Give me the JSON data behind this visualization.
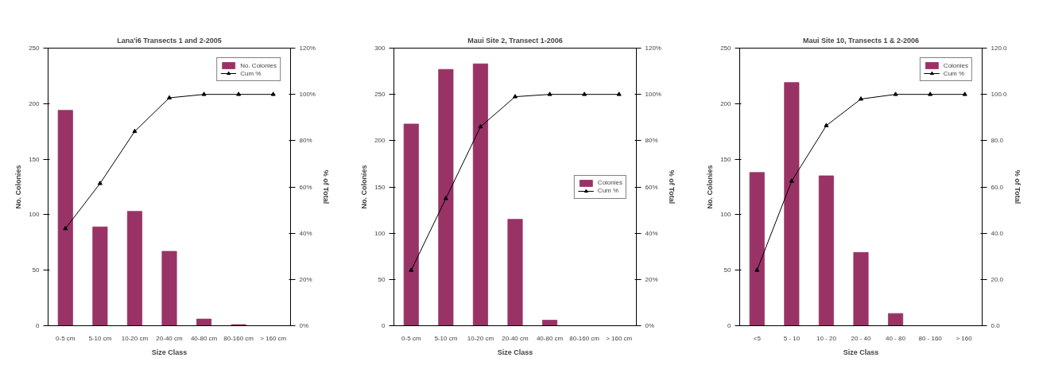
{
  "chart_data": [
    {
      "type": "bar",
      "title": "Lana'i6 Transects 1 and 2-2005",
      "xlabel": "Size Class",
      "ylabel": "No. Colonies",
      "y2label": "% of Total",
      "categories": [
        "0-5 cm",
        "5-10 cm",
        "10-20 cm",
        "20-40 cm",
        "40-80 cm",
        "80-160 cm",
        "> 160 cm"
      ],
      "ylim": [
        0,
        250
      ],
      "yticks": [
        0,
        50,
        100,
        150,
        200,
        250
      ],
      "y2lim": [
        0,
        120
      ],
      "y2ticks": [
        {
          "value": 0,
          "label": "0%"
        },
        {
          "value": 20,
          "label": "20%"
        },
        {
          "value": 40,
          "label": "40%"
        },
        {
          "value": 60,
          "label": "60%"
        },
        {
          "value": 80,
          "label": "80%"
        },
        {
          "value": 100,
          "label": "100%"
        },
        {
          "value": 120,
          "label": "120%"
        }
      ],
      "grid": false,
      "legend": "top right",
      "series": [
        {
          "name": "No. Colonies",
          "color": "#993366",
          "values": [
            194,
            89,
            103,
            67,
            6,
            1,
            0
          ]
        },
        {
          "name": "Cum %",
          "type": "line",
          "axis": "y2",
          "color": "#000000",
          "marker": "triangle",
          "values": [
            42,
            61.5,
            84,
            98.5,
            100,
            100,
            100
          ]
        }
      ]
    },
    {
      "type": "bar",
      "title": "Maui Site 2, Transect 1-2006",
      "xlabel": "Size Class",
      "ylabel": "No. Colonies",
      "y2label": "% of Total",
      "categories": [
        "0-5 cm",
        "5-10 cm",
        "10-20 cm",
        "20-40 cm",
        "40-80 cm",
        "80-160 cm",
        "> 160 cm"
      ],
      "ylim": [
        0,
        300
      ],
      "yticks": [
        0,
        50,
        100,
        150,
        200,
        250,
        300
      ],
      "y2lim": [
        0,
        120
      ],
      "y2ticks": [
        {
          "value": 0,
          "label": "0%"
        },
        {
          "value": 20,
          "label": "20%"
        },
        {
          "value": 40,
          "label": "40%"
        },
        {
          "value": 60,
          "label": "60%"
        },
        {
          "value": 80,
          "label": "80%"
        },
        {
          "value": 100,
          "label": "100%"
        },
        {
          "value": 120,
          "label": "120%"
        }
      ],
      "grid": false,
      "legend": "right",
      "series": [
        {
          "name": "Colonies",
          "color": "#993366",
          "values": [
            218,
            277,
            283,
            115,
            6,
            0,
            0
          ]
        },
        {
          "name": "Cum %",
          "type": "line",
          "axis": "y2",
          "color": "#000000",
          "marker": "triangle",
          "values": [
            24,
            55,
            86,
            99,
            100,
            100,
            100
          ]
        }
      ]
    },
    {
      "type": "bar",
      "title": "Maui Site 10, Transects 1 & 2-2006",
      "xlabel": "Size Class",
      "ylabel": "No. Colonies",
      "y2label": "% of Total",
      "categories": [
        "<5",
        "5 - 10",
        "10 - 20",
        "20 - 40",
        "40 - 80",
        "80 - 160",
        ">  160"
      ],
      "ylim": [
        0,
        250
      ],
      "yticks": [
        0,
        50,
        100,
        150,
        200,
        250
      ],
      "y2lim": [
        0,
        120
      ],
      "y2ticks": [
        {
          "value": 0,
          "label": "0.0"
        },
        {
          "value": 20,
          "label": "20.0"
        },
        {
          "value": 40,
          "label": "40.0"
        },
        {
          "value": 60,
          "label": "60.0"
        },
        {
          "value": 80,
          "label": "80.0"
        },
        {
          "value": 100,
          "label": "100.0"
        },
        {
          "value": 120,
          "label": "120.0"
        }
      ],
      "grid": false,
      "legend": "top right",
      "series": [
        {
          "name": "Colonies",
          "color": "#993366",
          "values": [
            138,
            219,
            135,
            66,
            11,
            0,
            0
          ]
        },
        {
          "name": "Cum %",
          "type": "line",
          "axis": "y2",
          "color": "#000000",
          "marker": "triangle",
          "values": [
            24,
            62.5,
            86.5,
            98,
            100,
            100,
            100
          ]
        }
      ]
    }
  ]
}
